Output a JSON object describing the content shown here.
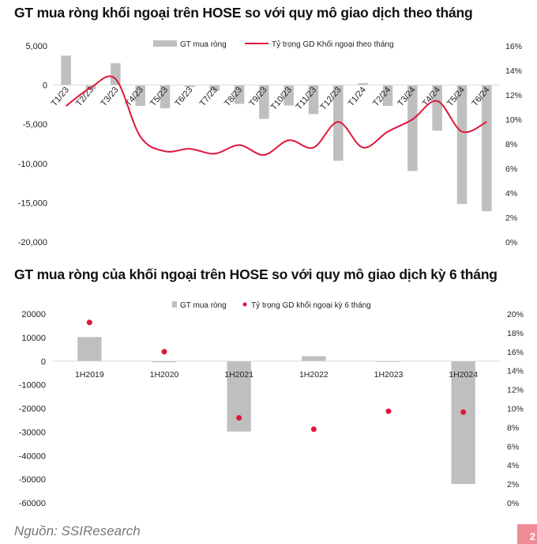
{
  "chart_data": [
    {
      "type": "bar+line",
      "title": "GT mua ròng khối ngoại trên HOSE so với quy mô giao dịch theo tháng",
      "categories": [
        "T1/23",
        "T2/23",
        "T3/23",
        "T4/23",
        "T5/23",
        "T6/23",
        "T7/23",
        "T8/23",
        "T9/23",
        "T10/23",
        "T11/23",
        "T12/23",
        "T1/24",
        "T2/24",
        "T3/24",
        "T4/24",
        "T5/24",
        "T6/24"
      ],
      "series": [
        {
          "name": "GT mua ròng",
          "axis": "left",
          "kind": "bar",
          "color": "#bfbfbf",
          "values": [
            3750,
            -550,
            2800,
            -2650,
            -2950,
            -250,
            -750,
            -2400,
            -4300,
            -2600,
            -3700,
            -9650,
            250,
            -2650,
            -10950,
            -5800,
            -15150,
            -16100
          ]
        },
        {
          "name": "Tỷ trọng GD Khối ngoại theo tháng",
          "axis": "right",
          "kind": "line",
          "color": "#e0163a",
          "values": [
            11.1,
            12.6,
            13.3,
            8.6,
            7.4,
            7.6,
            7.2,
            7.9,
            7.1,
            8.3,
            7.7,
            9.8,
            7.7,
            9.0,
            10.0,
            11.5,
            9.0,
            9.8
          ]
        }
      ],
      "ylim_left": [
        -20000,
        5000
      ],
      "left_ticks": [
        "5,000",
        "0",
        "-5,000",
        "-10,000",
        "-15,000",
        "-20,000"
      ],
      "ylim_right": [
        0,
        16
      ],
      "right_ticks": [
        "16%",
        "14%",
        "12%",
        "10%",
        "8%",
        "6%",
        "4%",
        "2%",
        "0%"
      ],
      "legend": "top-center"
    },
    {
      "type": "bar+scatter",
      "title": "GT mua ròng của khối ngoại trên HOSE so với quy mô giao dịch kỳ 6 tháng",
      "categories": [
        "1H2019",
        "1H2020",
        "1H2021",
        "1H2022",
        "1H2023",
        "1H2024"
      ],
      "series": [
        {
          "name": "GT mua ròng",
          "axis": "left",
          "kind": "bar",
          "color": "#bfbfbf",
          "values": [
            10200,
            -500,
            -29800,
            2100,
            -300,
            -52000
          ]
        },
        {
          "name": "Tỷ trọng GD khối ngoại kỳ 6 tháng",
          "axis": "right",
          "kind": "scatter",
          "color": "#e0163a",
          "values": [
            19.1,
            16.0,
            9.0,
            7.8,
            9.7,
            9.6
          ]
        }
      ],
      "ylim_left": [
        -60000,
        20000
      ],
      "left_ticks": [
        "20000",
        "10000",
        "0",
        "-10000",
        "-20000",
        "-30000",
        "-40000",
        "-50000",
        "-60000"
      ],
      "ylim_right": [
        0,
        20
      ],
      "right_ticks": [
        "20%",
        "18%",
        "16%",
        "14%",
        "12%",
        "10%",
        "8%",
        "6%",
        "4%",
        "2%",
        "0%"
      ],
      "legend": "top-center"
    }
  ],
  "footer": {
    "source": "Nguồn: SSIResearch",
    "page": "2"
  }
}
